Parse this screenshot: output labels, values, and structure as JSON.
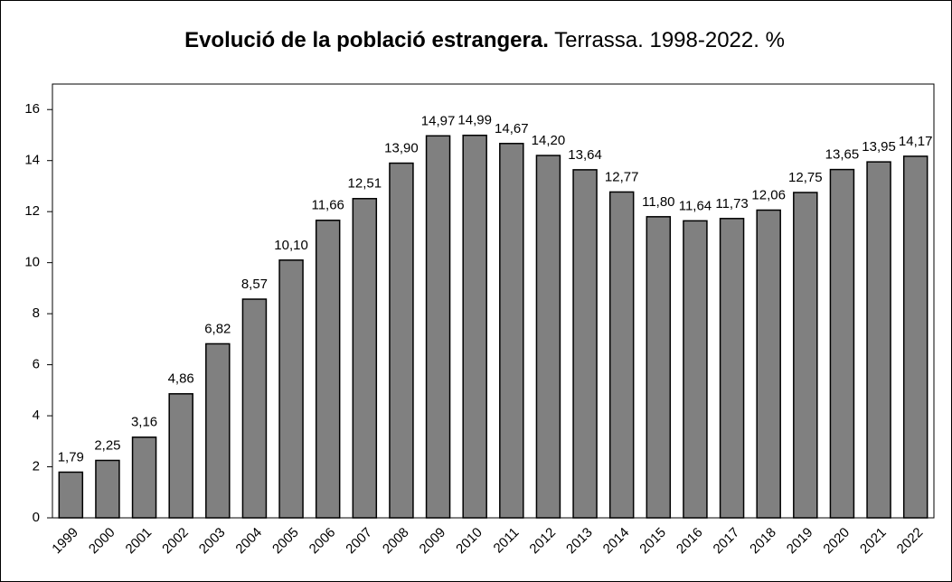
{
  "chart_data": {
    "type": "bar",
    "title": "Evolució de la població estrangera.",
    "subtitle": "Terrassa. 1998-2022. %",
    "categories": [
      "1999",
      "2000",
      "2001",
      "2002",
      "2003",
      "2004",
      "2005",
      "2006",
      "2007",
      "2008",
      "2009",
      "2010",
      "2011",
      "2012",
      "2013",
      "2014",
      "2015",
      "2016",
      "2017",
      "2018",
      "2019",
      "2020",
      "2021",
      "2022"
    ],
    "values": [
      1.79,
      2.25,
      3.16,
      4.86,
      6.82,
      8.57,
      10.1,
      11.66,
      12.51,
      13.9,
      14.97,
      14.99,
      14.67,
      14.2,
      13.64,
      12.77,
      11.8,
      11.64,
      11.73,
      12.06,
      12.75,
      13.65,
      13.95,
      14.17
    ],
    "value_labels": [
      "1,79",
      "2,25",
      "3,16",
      "4,86",
      "6,82",
      "8,57",
      "10,10",
      "11,66",
      "12,51",
      "13,90",
      "14,97",
      "14,99",
      "14,67",
      "14,20",
      "13,64",
      "12,77",
      "11,80",
      "11,64",
      "11,73",
      "12,06",
      "12,75",
      "13,65",
      "13,95",
      "14,17"
    ],
    "color": "#808080",
    "ylim": [
      0,
      17
    ],
    "yticks": [
      0,
      2,
      4,
      6,
      8,
      10,
      12,
      14,
      16
    ],
    "grid": false
  }
}
